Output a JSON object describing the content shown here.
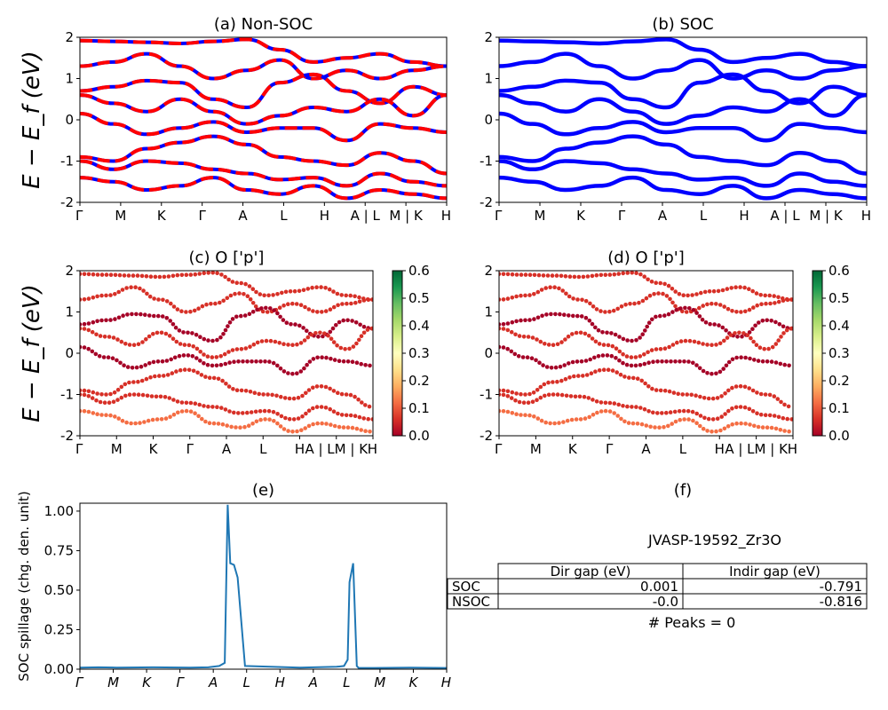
{
  "figure": {
    "ylabel_upper": "E − E_f (eV)",
    "ylabel_middle": "E − E_f (eV)"
  },
  "kpath_labels": [
    "Γ",
    "M",
    "K",
    "Γ",
    "A",
    "L",
    "H",
    "A | L",
    "M | K",
    "H"
  ],
  "kpath_labels_c": [
    "Γ",
    "M",
    "K",
    "Γ",
    "A",
    "L",
    "H",
    "A | LM | K",
    "H"
  ],
  "kpath_labels_e": [
    "Γ",
    "M",
    "K",
    "Γ",
    "A",
    "L",
    "H",
    "A",
    "L",
    "M",
    "K",
    "H"
  ],
  "colors": {
    "soc_band": "#0000ff",
    "nonsoc_band": "#ff0000",
    "spillage_line": "#1f77b4",
    "colormap": [
      "#a50026",
      "#d73027",
      "#f46d43",
      "#fdae61",
      "#fee08b",
      "#ffffbf",
      "#d9ef8b",
      "#a6d96a",
      "#66bd63",
      "#1a9850",
      "#006837"
    ]
  },
  "chart_data": [
    {
      "id": "a",
      "type": "line",
      "title": "(a) Non-SOC",
      "ylabel": "E − E_f (eV)",
      "ylim": [
        -2,
        2
      ],
      "yticks": [
        -2,
        -1,
        0,
        1,
        2
      ],
      "xticklabels": [
        "Γ",
        "M",
        "K",
        "Γ",
        "A",
        "L",
        "H",
        "A | L",
        "M | K",
        "H"
      ],
      "series": [
        {
          "values": [
            1.92,
            1.9,
            1.88,
            1.85,
            1.9,
            1.95,
            1.7,
            1.4,
            1.5,
            1.6,
            1.4,
            1.3
          ]
        },
        {
          "values": [
            1.3,
            1.4,
            1.6,
            1.3,
            1.0,
            1.2,
            1.45,
            1.0,
            1.2,
            1.0,
            1.2,
            1.3
          ]
        },
        {
          "values": [
            0.7,
            0.8,
            0.95,
            0.9,
            0.5,
            0.3,
            0.9,
            1.1,
            0.7,
            0.4,
            0.8,
            0.6
          ]
        },
        {
          "values": [
            0.6,
            0.4,
            0.2,
            0.5,
            0.2,
            -0.1,
            0.1,
            0.3,
            0.2,
            0.5,
            0.1,
            0.6
          ]
        },
        {
          "values": [
            0.15,
            -0.1,
            -0.35,
            -0.2,
            -0.05,
            -0.3,
            -0.2,
            -0.2,
            -0.5,
            -0.1,
            -0.2,
            -0.3
          ]
        },
        {
          "values": [
            -0.9,
            -1.0,
            -0.7,
            -0.55,
            -0.4,
            -0.6,
            -0.9,
            -1.0,
            -1.1,
            -0.8,
            -1.0,
            -1.3
          ]
        },
        {
          "values": [
            -1.0,
            -1.2,
            -1.0,
            -1.05,
            -1.2,
            -1.3,
            -1.45,
            -1.4,
            -1.6,
            -1.3,
            -1.5,
            -1.6
          ]
        },
        {
          "values": [
            -1.4,
            -1.5,
            -1.7,
            -1.6,
            -1.4,
            -1.7,
            -1.8,
            -1.6,
            -1.9,
            -1.7,
            -1.8,
            -1.9
          ]
        }
      ]
    },
    {
      "id": "b",
      "type": "line",
      "title": "(b) SOC",
      "ylim": [
        -2,
        2
      ],
      "yticks": [
        -2,
        -1,
        0,
        1,
        2
      ],
      "xticklabels": [
        "Γ",
        "M",
        "K",
        "Γ",
        "A",
        "L",
        "H",
        "A | L",
        "M | K",
        "H"
      ],
      "series": [
        {
          "values": [
            1.92,
            1.9,
            1.88,
            1.85,
            1.9,
            1.95,
            1.7,
            1.4,
            1.5,
            1.6,
            1.4,
            1.3
          ]
        },
        {
          "values": [
            1.3,
            1.4,
            1.6,
            1.3,
            1.0,
            1.2,
            1.45,
            1.0,
            1.2,
            1.0,
            1.2,
            1.3
          ]
        },
        {
          "values": [
            0.7,
            0.8,
            0.95,
            0.9,
            0.5,
            0.3,
            0.9,
            1.1,
            0.7,
            0.4,
            0.8,
            0.6
          ]
        },
        {
          "values": [
            0.6,
            0.4,
            0.2,
            0.5,
            0.2,
            -0.1,
            0.1,
            0.3,
            0.2,
            0.5,
            0.1,
            0.6
          ]
        },
        {
          "values": [
            0.15,
            -0.1,
            -0.35,
            -0.2,
            -0.05,
            -0.3,
            -0.2,
            -0.2,
            -0.5,
            -0.1,
            -0.2,
            -0.3
          ]
        },
        {
          "values": [
            -0.9,
            -1.0,
            -0.7,
            -0.55,
            -0.4,
            -0.6,
            -0.9,
            -1.0,
            -1.1,
            -0.8,
            -1.0,
            -1.3
          ]
        },
        {
          "values": [
            -1.0,
            -1.2,
            -1.0,
            -1.05,
            -1.2,
            -1.3,
            -1.45,
            -1.4,
            -1.6,
            -1.3,
            -1.5,
            -1.6
          ]
        },
        {
          "values": [
            -1.4,
            -1.5,
            -1.7,
            -1.6,
            -1.4,
            -1.7,
            -1.8,
            -1.6,
            -1.9,
            -1.7,
            -1.8,
            -1.9
          ]
        }
      ]
    },
    {
      "id": "c",
      "type": "scatter",
      "title": "(c)  O ['p']",
      "ylim": [
        -2,
        2
      ],
      "yticks": [
        -2,
        -1,
        0,
        1,
        2
      ],
      "xticklabels": [
        "Γ",
        "M",
        "K",
        "Γ",
        "A",
        "L",
        "H",
        "A | LM | K",
        "H"
      ],
      "colorbar": {
        "ticks": [
          0.0,
          0.1,
          0.2,
          0.3,
          0.4,
          0.5,
          0.6
        ],
        "range": [
          0,
          0.6
        ]
      },
      "series": [
        {
          "values": [
            1.92,
            1.9,
            1.88,
            1.85,
            1.9,
            1.95,
            1.7,
            1.4,
            1.5,
            1.6,
            1.4,
            1.3
          ],
          "weight": 0.05
        },
        {
          "values": [
            1.3,
            1.4,
            1.6,
            1.3,
            1.0,
            1.2,
            1.45,
            1.0,
            1.2,
            1.0,
            1.2,
            1.3
          ],
          "weight": 0.03
        },
        {
          "values": [
            0.7,
            0.8,
            0.95,
            0.9,
            0.5,
            0.3,
            0.9,
            1.1,
            0.7,
            0.4,
            0.8,
            0.6
          ],
          "weight": 0.02
        },
        {
          "values": [
            0.6,
            0.4,
            0.2,
            0.5,
            0.2,
            -0.1,
            0.1,
            0.3,
            0.2,
            0.5,
            0.1,
            0.6
          ],
          "weight": 0.04
        },
        {
          "values": [
            0.15,
            -0.1,
            -0.35,
            -0.2,
            -0.05,
            -0.3,
            -0.2,
            -0.2,
            -0.5,
            -0.1,
            -0.2,
            -0.3
          ],
          "weight": 0.02
        },
        {
          "values": [
            -0.9,
            -1.0,
            -0.7,
            -0.55,
            -0.4,
            -0.6,
            -0.9,
            -1.0,
            -1.1,
            -0.8,
            -1.0,
            -1.3
          ],
          "weight": 0.03
        },
        {
          "values": [
            -1.0,
            -1.2,
            -1.0,
            -1.05,
            -1.2,
            -1.3,
            -1.45,
            -1.4,
            -1.6,
            -1.3,
            -1.5,
            -1.6
          ],
          "weight": 0.06
        },
        {
          "values": [
            -1.4,
            -1.5,
            -1.7,
            -1.6,
            -1.4,
            -1.7,
            -1.8,
            -1.6,
            -1.9,
            -1.7,
            -1.8,
            -1.9
          ],
          "weight": 0.09
        }
      ]
    },
    {
      "id": "d",
      "type": "scatter",
      "title": "(d) O ['p']",
      "ylim": [
        -2,
        2
      ],
      "yticks": [
        -2,
        -1,
        0,
        1,
        2
      ],
      "xticklabels": [
        "Γ",
        "M",
        "K",
        "Γ",
        "A",
        "L",
        "H",
        "A | LM | K",
        "H"
      ],
      "colorbar": {
        "ticks": [
          0.0,
          0.1,
          0.2,
          0.3,
          0.4,
          0.5,
          0.6
        ],
        "range": [
          0,
          0.6
        ]
      },
      "series": [
        {
          "values": [
            1.92,
            1.9,
            1.88,
            1.85,
            1.9,
            1.95,
            1.7,
            1.4,
            1.5,
            1.6,
            1.4,
            1.3
          ],
          "weight": 0.06
        },
        {
          "values": [
            1.3,
            1.4,
            1.6,
            1.3,
            1.0,
            1.2,
            1.45,
            1.0,
            1.2,
            1.0,
            1.2,
            1.3
          ],
          "weight": 0.03
        },
        {
          "values": [
            0.7,
            0.8,
            0.95,
            0.9,
            0.5,
            0.3,
            0.9,
            1.1,
            0.7,
            0.4,
            0.8,
            0.6
          ],
          "weight": 0.02
        },
        {
          "values": [
            0.6,
            0.4,
            0.2,
            0.5,
            0.2,
            -0.1,
            0.1,
            0.3,
            0.2,
            0.5,
            0.1,
            0.6
          ],
          "weight": 0.04
        },
        {
          "values": [
            0.15,
            -0.1,
            -0.35,
            -0.2,
            -0.05,
            -0.3,
            -0.2,
            -0.2,
            -0.5,
            -0.1,
            -0.2,
            -0.3
          ],
          "weight": 0.02
        },
        {
          "values": [
            -0.9,
            -1.0,
            -0.7,
            -0.55,
            -0.4,
            -0.6,
            -0.9,
            -1.0,
            -1.1,
            -0.8,
            -1.0,
            -1.3
          ],
          "weight": 0.03
        },
        {
          "values": [
            -1.0,
            -1.2,
            -1.0,
            -1.05,
            -1.2,
            -1.3,
            -1.45,
            -1.4,
            -1.6,
            -1.3,
            -1.5,
            -1.6
          ],
          "weight": 0.06
        },
        {
          "values": [
            -1.4,
            -1.5,
            -1.7,
            -1.6,
            -1.4,
            -1.7,
            -1.8,
            -1.6,
            -1.9,
            -1.7,
            -1.8,
            -1.9
          ],
          "weight": 0.09
        }
      ]
    },
    {
      "id": "e",
      "type": "line",
      "title": "(e)",
      "ylabel": "SOC spillage (chg. den. unit)",
      "ylim": [
        0,
        1.05
      ],
      "yticks": [
        "0.00",
        "0.25",
        "0.50",
        "0.75",
        "1.00"
      ],
      "xticklabels": [
        "Γ",
        "M",
        "K",
        "Γ",
        "A",
        "L",
        "H",
        "A",
        "L",
        "M",
        "K",
        "H"
      ],
      "x": [
        0,
        0.05,
        0.1,
        0.2,
        0.3,
        0.35,
        0.38,
        0.395,
        0.403,
        0.41,
        0.42,
        0.43,
        0.45,
        0.6,
        0.7,
        0.72,
        0.73,
        0.735,
        0.745,
        0.755,
        0.76,
        0.8,
        0.9,
        1.0
      ],
      "values": [
        0.01,
        0.012,
        0.01,
        0.012,
        0.01,
        0.012,
        0.02,
        0.04,
        1.04,
        0.67,
        0.66,
        0.58,
        0.02,
        0.01,
        0.015,
        0.02,
        0.06,
        0.55,
        0.67,
        0.02,
        0.008,
        0.008,
        0.01,
        0.008
      ]
    },
    {
      "id": "f",
      "type": "table",
      "title": "(f)",
      "caption": "JVASP-19592_Zr3O",
      "columns": [
        "",
        "Dir gap (eV)",
        "Indir gap (eV)"
      ],
      "rows": [
        [
          "SOC",
          "0.001",
          "-0.791"
        ],
        [
          "NSOC",
          "-0.0",
          "-0.816"
        ]
      ],
      "footer": "# Peaks = 0"
    }
  ]
}
